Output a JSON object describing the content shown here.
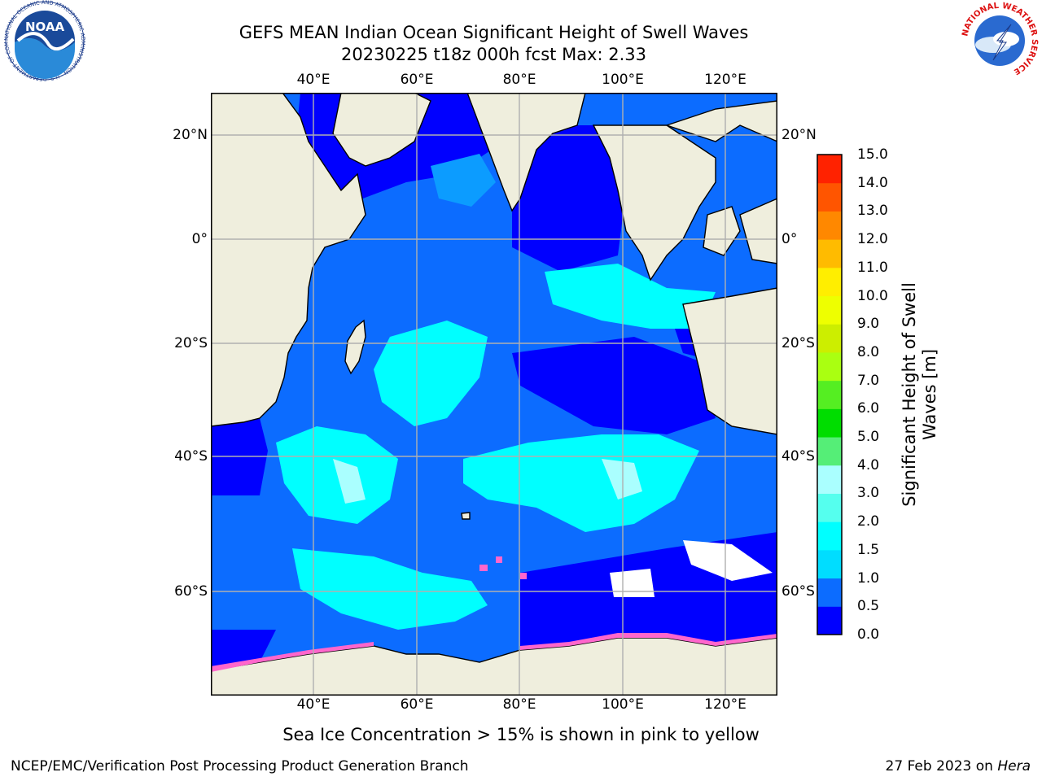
{
  "title": {
    "line1": "GEFS MEAN Indian Ocean Significant Height of Swell Waves",
    "line2": "20230225 t18z 000h fcst   Max: 2.33"
  },
  "map": {
    "lon_ticks": [
      "40°E",
      "60°E",
      "80°E",
      "100°E",
      "120°E"
    ],
    "lat_ticks": [
      "20°N",
      "0°",
      "20°S",
      "40°S",
      "60°S"
    ]
  },
  "colorbar": {
    "label_line1": "Significant Height of Swell",
    "label_line2": "Waves [m]",
    "ticks": [
      "0.0",
      "0.5",
      "1.0",
      "1.5",
      "2.0",
      "3.0",
      "4.0",
      "5.0",
      "6.0",
      "7.0",
      "8.0",
      "9.0",
      "10.0",
      "11.0",
      "12.0",
      "13.0",
      "14.0",
      "15.0"
    ],
    "colors": [
      "#0000ff",
      "#0c6cff",
      "#00ddff",
      "#00ffff",
      "#55ffee",
      "#aaffff",
      "#55ee77",
      "#00dd00",
      "#55ee22",
      "#aaff11",
      "#ccee00",
      "#eeff00",
      "#ffee00",
      "#ffbb00",
      "#ff8800",
      "#ff5500",
      "#ff2200"
    ]
  },
  "caption": "Sea Ice Concentration > 15% is shown in pink to yellow",
  "credit_left": "NCEP/EMC/Verification Post Processing Product Generation Branch",
  "credit_right_date": "27 Feb 2023 on ",
  "credit_right_host": "Hera",
  "logos": {
    "noaa_text": "NOAA",
    "noaa_ring": "NATIONAL OCEANIC AND ATMOSPHERIC ADMINISTRATION · U.S. DEPARTMENT OF COMMERCE",
    "nws_ring": "NATIONAL WEATHER SERVICE"
  },
  "palette": {
    "land": "#efeedd",
    "deep": "#0000ff",
    "mid": "#0c6cff",
    "light": "#00ffff",
    "grid": "#b0b0b0"
  }
}
